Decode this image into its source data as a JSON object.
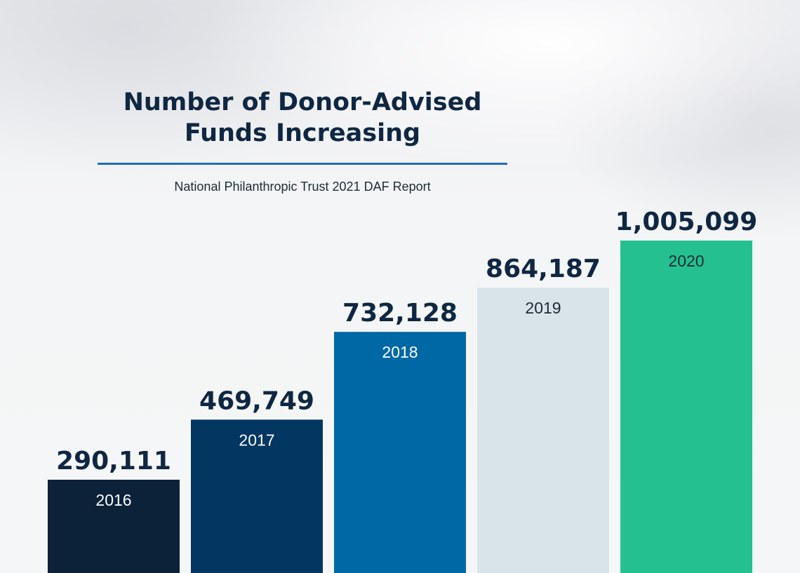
{
  "title": "Number of Donor-Advised Funds Increasing",
  "subtitle": "National Philanthropic Trust 2021 DAF Report",
  "chart_data": {
    "type": "bar",
    "categories": [
      "2016",
      "2017",
      "2018",
      "2019",
      "2020"
    ],
    "values": [
      290111,
      469749,
      732128,
      864187,
      1005099
    ],
    "value_labels": [
      "290,111",
      "469,749",
      "732,128",
      "864,187",
      "1,005,099"
    ],
    "title": "Number of Donor-Advised Funds Increasing",
    "subtitle": "National Philanthropic Trust 2021 DAF Report",
    "xlabel": "",
    "ylabel": "",
    "grid": false,
    "legend": "none",
    "bar_colors": [
      "#0b2239",
      "#033660",
      "#0068a5",
      "#d9e4ea",
      "#25c08f"
    ],
    "category_label_colors": [
      "#ffffff",
      "#ffffff",
      "#ffffff",
      "#1e2a36",
      "#1e2a36"
    ]
  }
}
